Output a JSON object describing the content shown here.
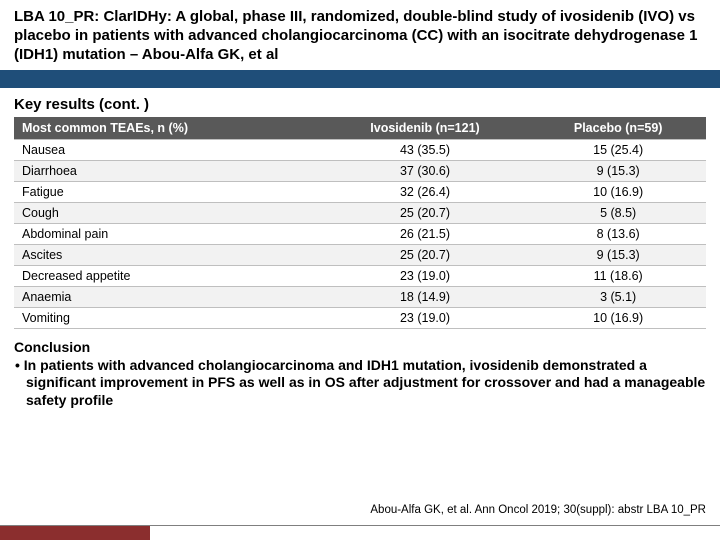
{
  "header": {
    "title": "LBA 10_PR: ClarIDHy: A global, phase III, randomized, double-blind study of ivosidenib (IVO) vs placebo in patients with advanced cholangiocarcinoma (CC) with an isocitrate dehydrogenase 1 (IDH1) mutation – Abou-Alfa GK, et al"
  },
  "subtitle": "Key results (cont. )",
  "table": {
    "columns": [
      "Most common TEAEs, n (%)",
      "Ivosidenib (n=121)",
      "Placebo (n=59)"
    ],
    "rows": [
      [
        "Nausea",
        "43 (35.5)",
        "15 (25.4)"
      ],
      [
        "Diarrhoea",
        "37 (30.6)",
        "9 (15.3)"
      ],
      [
        "Fatigue",
        "32 (26.4)",
        "10 (16.9)"
      ],
      [
        "Cough",
        "25 (20.7)",
        "5 (8.5)"
      ],
      [
        "Abdominal pain",
        "26 (21.5)",
        "8 (13.6)"
      ],
      [
        "Ascites",
        "25 (20.7)",
        "9 (15.3)"
      ],
      [
        "Decreased appetite",
        "23 (19.0)",
        "11 (18.6)"
      ],
      [
        "Anaemia",
        "18 (14.9)",
        "3 (5.1)"
      ],
      [
        "Vomiting",
        "23 (19.0)",
        "10 (16.9)"
      ]
    ],
    "header_bg": "#595959",
    "header_fg": "#ffffff",
    "row_even_bg": "#f2f2f2",
    "border_color": "#bfbfbf",
    "fontsize": 12.5
  },
  "conclusion": {
    "heading": "Conclusion",
    "bullet": "• In patients with advanced cholangiocarcinoma and IDH1 mutation, ivosidenib demonstrated a significant improvement in PFS as well as in OS after adjustment for crossover and had a manageable safety profile"
  },
  "citation": "Abou-Alfa GK, et al. Ann Oncol 2019; 30(suppl): abstr LBA 10_PR",
  "colors": {
    "header_blue": "#1f4e79",
    "footer_red": "#8b2e2e",
    "text": "#000000",
    "background": "#ffffff"
  }
}
